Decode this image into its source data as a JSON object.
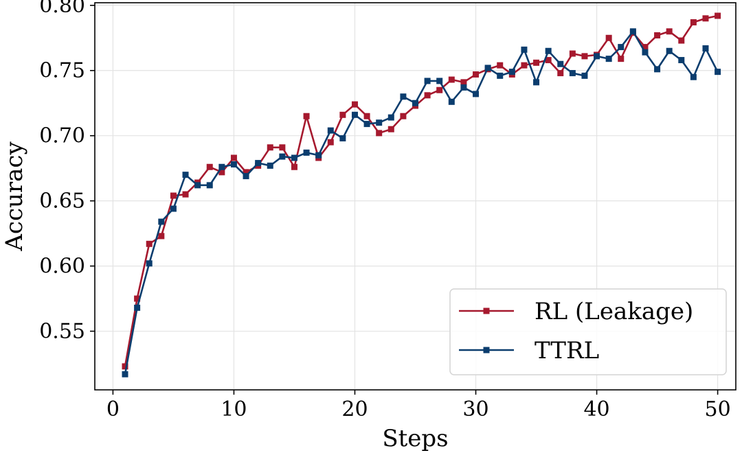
{
  "chart_data": {
    "type": "line",
    "xlabel": "Steps",
    "ylabel": "Accuracy",
    "xlim": [
      -1.5,
      51.5
    ],
    "ylim": [
      0.505,
      0.802
    ],
    "xticks": [
      0,
      10,
      20,
      30,
      40,
      50
    ],
    "xtick_labels": [
      "0",
      "10",
      "20",
      "30",
      "40",
      "50"
    ],
    "yticks": [
      0.55,
      0.6,
      0.65,
      0.7,
      0.75,
      0.8
    ],
    "ytick_labels": [
      "0.55",
      "0.60",
      "0.65",
      "0.70",
      "0.75",
      "0.80"
    ],
    "grid": true,
    "legend_position": "lower-right",
    "x": [
      1,
      2,
      3,
      4,
      5,
      6,
      7,
      8,
      9,
      10,
      11,
      12,
      13,
      14,
      15,
      16,
      17,
      18,
      19,
      20,
      21,
      22,
      23,
      24,
      25,
      26,
      27,
      28,
      29,
      30,
      31,
      32,
      33,
      34,
      35,
      36,
      37,
      38,
      39,
      40,
      41,
      42,
      43,
      44,
      45,
      46,
      47,
      48,
      49,
      50
    ],
    "series": [
      {
        "name": "RL (Leakage)",
        "color": "#a6192e",
        "marker": "square",
        "values": [
          0.523,
          0.575,
          0.617,
          0.623,
          0.654,
          0.655,
          0.664,
          0.676,
          0.672,
          0.683,
          0.672,
          0.677,
          0.691,
          0.691,
          0.676,
          0.715,
          0.683,
          0.695,
          0.716,
          0.724,
          0.715,
          0.702,
          0.705,
          0.715,
          0.723,
          0.731,
          0.735,
          0.743,
          0.741,
          0.747,
          0.751,
          0.754,
          0.747,
          0.754,
          0.756,
          0.758,
          0.748,
          0.763,
          0.761,
          0.762,
          0.775,
          0.759,
          0.779,
          0.768,
          0.777,
          0.78,
          0.773,
          0.787,
          0.79,
          0.792
        ]
      },
      {
        "name": "TTRL",
        "color": "#0b3d6e",
        "marker": "square",
        "values": [
          0.517,
          0.568,
          0.602,
          0.634,
          0.644,
          0.67,
          0.662,
          0.662,
          0.676,
          0.678,
          0.669,
          0.679,
          0.677,
          0.684,
          0.683,
          0.687,
          0.685,
          0.704,
          0.698,
          0.716,
          0.709,
          0.71,
          0.714,
          0.73,
          0.725,
          0.742,
          0.742,
          0.726,
          0.737,
          0.732,
          0.752,
          0.746,
          0.749,
          0.766,
          0.741,
          0.765,
          0.755,
          0.748,
          0.746,
          0.761,
          0.759,
          0.768,
          0.78,
          0.764,
          0.751,
          0.765,
          0.758,
          0.745,
          0.767,
          0.749
        ]
      }
    ]
  }
}
